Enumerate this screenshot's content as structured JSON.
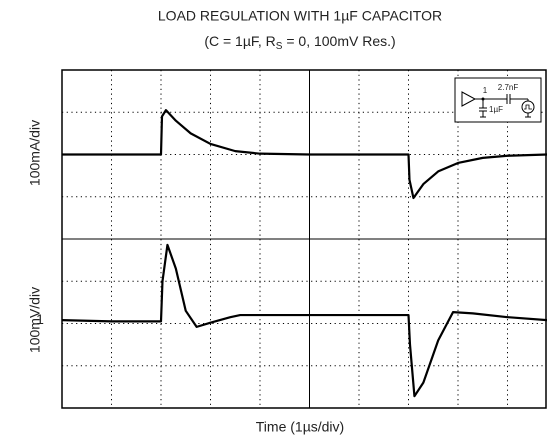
{
  "chart_data": {
    "type": "line",
    "title": "LOAD REGULATION WITH 1µF CAPACITOR",
    "subtitle_parts": [
      "(C = 1µF, R",
      "S",
      " = 0, 100mV Res.)"
    ],
    "xlabel": "Time (1µs/div)",
    "ylabels": [
      "100mA/div",
      "100mV/div"
    ],
    "marker": {
      "text": "1",
      "y": 2.08
    },
    "inset": {
      "cap_series": "2.7nF",
      "cap_load": "1µF",
      "node": "1"
    },
    "xlim": [
      0,
      9.8
    ],
    "ylim": [
      0,
      8
    ],
    "xticks": [
      1,
      2,
      3,
      4,
      5,
      6,
      7,
      8,
      9
    ],
    "yticks": [
      1,
      2,
      3,
      4,
      5,
      6,
      7
    ],
    "center_x": 5,
    "center_y": 4,
    "grid": true,
    "series": [
      {
        "color": "#000000",
        "x": [
          0,
          2,
          2.02,
          2.1,
          2.3,
          2.6,
          3.0,
          3.5,
          4,
          5,
          6,
          7,
          7.02,
          7.1,
          7.3,
          7.6,
          8,
          8.5,
          9,
          9.8
        ],
        "values": [
          6,
          6,
          6.9,
          7.05,
          6.8,
          6.5,
          6.25,
          6.08,
          6.02,
          6,
          6,
          6,
          5.4,
          4.97,
          5.3,
          5.6,
          5.8,
          5.92,
          5.97,
          6.0
        ]
      },
      {
        "color": "#000000",
        "x": [
          0,
          1,
          2,
          2.03,
          2.13,
          2.3,
          2.5,
          2.72,
          3.0,
          3.4,
          3.6,
          5,
          7,
          7.03,
          7.12,
          7.3,
          7.6,
          7.9,
          8.3,
          9,
          9.8
        ],
        "values": [
          2.08,
          2.05,
          2.05,
          3.0,
          3.86,
          3.3,
          2.3,
          1.92,
          2.02,
          2.15,
          2.2,
          2.2,
          2.2,
          1.5,
          0.28,
          0.6,
          1.6,
          2.27,
          2.24,
          2.15,
          2.08
        ]
      }
    ]
  }
}
